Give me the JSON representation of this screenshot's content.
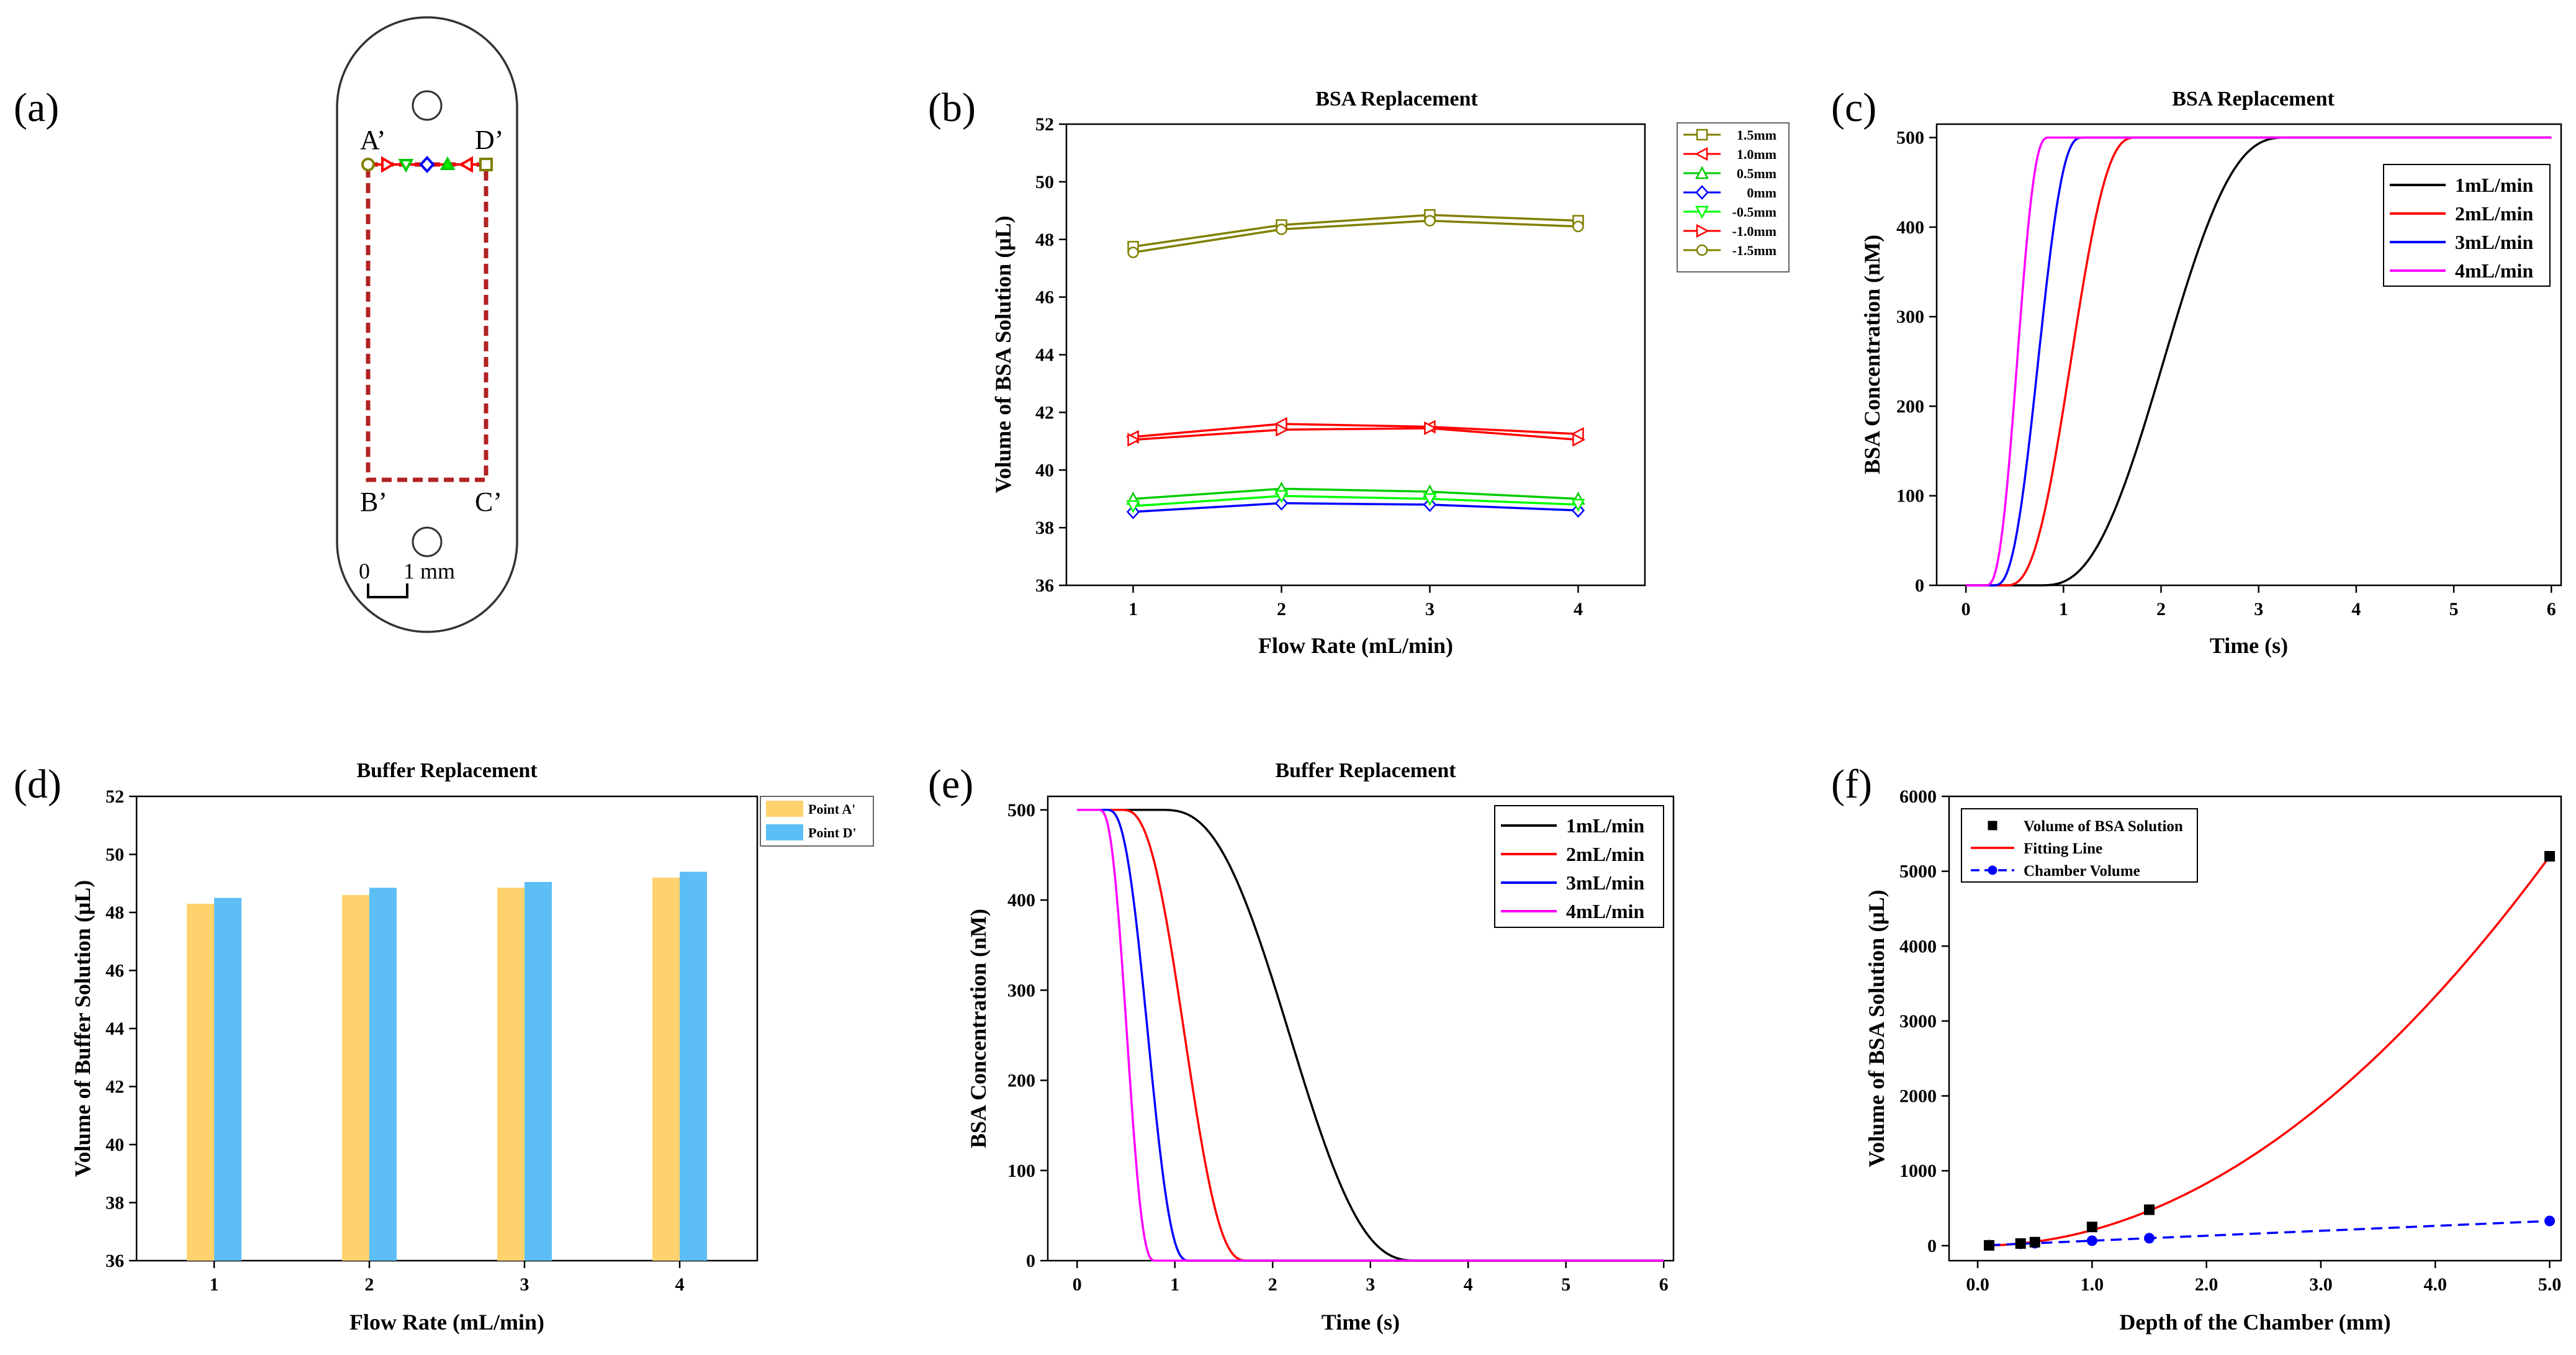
{
  "panels": {
    "a": {
      "letter": "(a)",
      "labels": {
        "a": "A’",
        "b": "B’",
        "c": "C’",
        "d": "D’"
      },
      "scale_zero": "0",
      "scale_text": "1 mm"
    },
    "b": {
      "letter": "(b)"
    },
    "c": {
      "letter": "(c)"
    },
    "d": {
      "letter": "(d)"
    },
    "e": {
      "letter": "(e)"
    },
    "f": {
      "letter": "(f)"
    }
  },
  "chart_data": [
    {
      "id": "b",
      "type": "line",
      "title": "BSA Replacement",
      "xlabel": "Flow Rate (mL/min)",
      "ylabel": "Volume of BSA Solution (μL)",
      "xlim": [
        0.55,
        4.45
      ],
      "ylim": [
        36,
        52
      ],
      "xticks": [
        1,
        2,
        3,
        4
      ],
      "yticks": [
        36,
        38,
        40,
        42,
        44,
        46,
        48,
        50,
        52
      ],
      "categories": [
        1,
        2,
        3,
        4
      ],
      "legend_position": "top-right outside",
      "series": [
        {
          "name": "1.5mm",
          "color": "#808000",
          "marker": "square",
          "values": [
            47.75,
            48.5,
            48.85,
            48.65
          ]
        },
        {
          "name": "1.0mm",
          "color": "#ff0000",
          "marker": "triangle-left",
          "values": [
            41.15,
            41.6,
            41.5,
            41.25
          ]
        },
        {
          "name": "0.5mm",
          "color": "#00cc00",
          "marker": "triangle-up",
          "values": [
            39.0,
            39.35,
            39.25,
            39.0
          ]
        },
        {
          "name": "0mm",
          "color": "#0000ff",
          "marker": "diamond",
          "values": [
            38.55,
            38.85,
            38.8,
            38.6
          ]
        },
        {
          "name": "-0.5mm",
          "color": "#00ff00",
          "marker": "triangle-down",
          "values": [
            38.75,
            39.1,
            39.0,
            38.8
          ]
        },
        {
          "name": "-1.0mm",
          "color": "#ff0000",
          "marker": "triangle-right",
          "values": [
            41.05,
            41.4,
            41.45,
            41.05
          ]
        },
        {
          "name": "-1.5mm",
          "color": "#808000",
          "marker": "circle",
          "values": [
            47.55,
            48.35,
            48.65,
            48.45
          ]
        }
      ]
    },
    {
      "id": "c",
      "type": "line",
      "title": "BSA Replacement",
      "xlabel": "Time (s)",
      "ylabel": "BSA Concentration (nM)",
      "xlim": [
        -0.3,
        6.1
      ],
      "ylim": [
        0,
        515
      ],
      "xticks": [
        0,
        1,
        2,
        3,
        4,
        5,
        6
      ],
      "yticks": [
        0,
        100,
        200,
        300,
        400,
        500
      ],
      "legend_position": "top-right",
      "curve": "rising sigmoid from 0 to 500 nM",
      "series": [
        {
          "name": "1mL/min",
          "color": "#000000",
          "t_start": 0.75,
          "t_end": 3.3,
          "x_end": 6.0
        },
        {
          "name": "2mL/min",
          "color": "#ff0000",
          "t_start": 0.4,
          "t_end": 1.75,
          "x_end": 6.0
        },
        {
          "name": "3mL/min",
          "color": "#0000ff",
          "t_start": 0.28,
          "t_end": 1.2,
          "x_end": 6.0
        },
        {
          "name": "4mL/min",
          "color": "#ff00ff",
          "t_start": 0.2,
          "t_end": 0.85,
          "x_end": 6.0
        }
      ]
    },
    {
      "id": "d",
      "type": "bar",
      "title": "Buffer Replacement",
      "xlabel": "Flow Rate (mL/min)",
      "ylabel": "Volume of Buffer Solution (μL)",
      "xlim": [
        0.5,
        4.5
      ],
      "ylim": [
        36,
        52
      ],
      "xticks": [
        1,
        2,
        3,
        4
      ],
      "yticks": [
        36,
        38,
        40,
        42,
        44,
        46,
        48,
        50,
        52
      ],
      "categories": [
        "1",
        "2",
        "3",
        "4"
      ],
      "legend_position": "top-right outside",
      "series": [
        {
          "name": "Point A'",
          "color": "#ffd26e",
          "values": [
            48.3,
            48.6,
            48.85,
            49.2
          ]
        },
        {
          "name": "Point D'",
          "color": "#5cbef5",
          "values": [
            48.5,
            48.85,
            49.05,
            49.4
          ]
        }
      ]
    },
    {
      "id": "e",
      "type": "line",
      "title": "Buffer Replacement",
      "xlabel": "Time (s)",
      "ylabel": "BSA Concentration (nM)",
      "xlim": [
        -0.3,
        6.1
      ],
      "ylim": [
        0,
        515
      ],
      "xticks": [
        0,
        1,
        2,
        3,
        4,
        5,
        6
      ],
      "yticks": [
        0,
        100,
        200,
        300,
        400,
        500
      ],
      "legend_position": "top-right",
      "curve": "falling sigmoid from 500 to 0 nM",
      "series": [
        {
          "name": "1mL/min",
          "color": "#000000",
          "t_start": 0.85,
          "t_end": 3.5,
          "x_start": 0.0,
          "x_end": 6.0
        },
        {
          "name": "2mL/min",
          "color": "#ff0000",
          "t_start": 0.45,
          "t_end": 1.75,
          "x_start": 0.0,
          "x_end": 6.0
        },
        {
          "name": "3mL/min",
          "color": "#0000ff",
          "t_start": 0.3,
          "t_end": 1.15,
          "x_start": 0.0,
          "x_end": 6.0
        },
        {
          "name": "4mL/min",
          "color": "#ff00ff",
          "t_start": 0.22,
          "t_end": 0.8,
          "x_start": 0.0,
          "x_end": 6.0
        }
      ]
    },
    {
      "id": "f",
      "type": "scatter",
      "title": "",
      "xlabel": "Depth of the Chamber (mm)",
      "ylabel": "Volume of BSA Solution (μL)",
      "xlim": [
        -0.25,
        5.1
      ],
      "ylim": [
        -200,
        6000
      ],
      "xticks": [
        "0.0",
        "1.0",
        "2.0",
        "3.0",
        "4.0",
        "5.0"
      ],
      "yticks": [
        0,
        1000,
        2000,
        3000,
        4000,
        5000,
        6000
      ],
      "legend_position": "top-left",
      "series": [
        {
          "name": "Volume of BSA Solution",
          "style": "black square markers",
          "color": "#000000",
          "x": [
            0.1,
            0.375,
            0.5,
            1.0,
            1.5,
            5.0
          ],
          "y": [
            4,
            29,
            47,
            250,
            480,
            5200
          ]
        },
        {
          "name": "Fitting Line",
          "style": "solid line",
          "color": "#ff0000",
          "equation": "y = 208*x^2",
          "x_range": [
            0.1,
            5.0
          ]
        },
        {
          "name": "Chamber Volume",
          "style": "dashed line with circle markers",
          "color": "#0000ff",
          "x": [
            0.1,
            0.375,
            0.5,
            1.0,
            1.5,
            5.0
          ],
          "y": [
            7,
            25,
            33,
            66,
            100,
            330
          ]
        }
      ]
    }
  ]
}
